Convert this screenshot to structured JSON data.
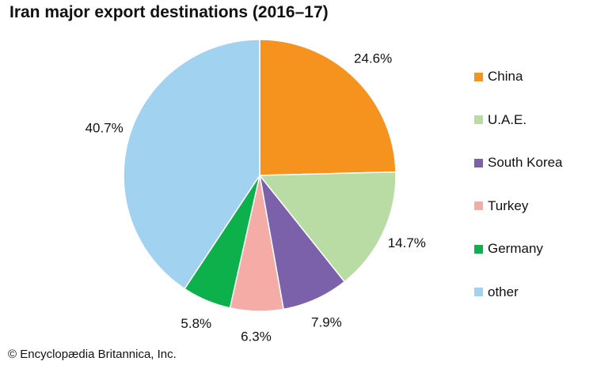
{
  "credit": "© Encyclopædia Britannica, Inc.",
  "chart_data": {
    "type": "pie",
    "title": "Iran major export destinations (2016–17)",
    "slices": [
      {
        "label": "China",
        "value": 24.6,
        "display": "24.6%",
        "color": "#F6921E"
      },
      {
        "label": "U.A.E.",
        "value": 14.7,
        "display": "14.7%",
        "color": "#B8DCA4"
      },
      {
        "label": "South Korea",
        "value": 7.9,
        "display": "7.9%",
        "color": "#7B61AA"
      },
      {
        "label": "Turkey",
        "value": 6.3,
        "display": "6.3%",
        "color": "#F6ACA6"
      },
      {
        "label": "Germany",
        "value": 5.8,
        "display": "5.8%",
        "color": "#0DB14B"
      },
      {
        "label": "other",
        "value": 40.7,
        "display": "40.7%",
        "color": "#A1D2F0"
      }
    ],
    "start_angle": "12 o'clock",
    "direction": "clockwise",
    "legend_position": "right"
  }
}
